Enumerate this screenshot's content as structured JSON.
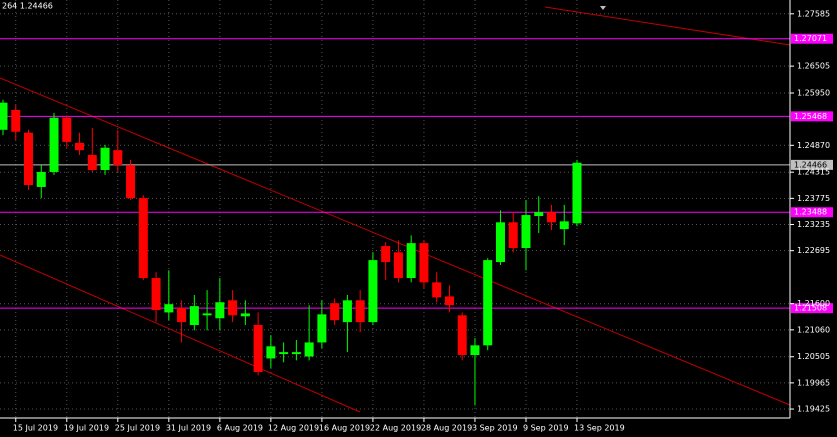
{
  "chart_data": {
    "type": "candlestick",
    "info": "264 1.24466",
    "categories": [
      null,
      "15 Jul 2019",
      null,
      null,
      null,
      "19 Jul 2019",
      null,
      null,
      null,
      "25 Jul 2019",
      null,
      null,
      null,
      "31 Jul 2019",
      null,
      null,
      null,
      "6 Aug 2019",
      null,
      null,
      null,
      "12 Aug 2019",
      null,
      null,
      null,
      "16 Aug 2019",
      null,
      null,
      null,
      "22 Aug 2019",
      null,
      null,
      null,
      "28 Aug 2019",
      null,
      null,
      null,
      "3 Sep 2019",
      null,
      null,
      null,
      "9 Sep 2019",
      null,
      null,
      null,
      "13 Sep 2019"
    ],
    "open": [
      1.2519,
      1.256,
      1.2513,
      1.2401,
      1.2432,
      1.2544,
      1.2492,
      1.2467,
      1.2436,
      1.2477,
      1.2446,
      1.2378,
      1.2213,
      1.2142,
      1.2151,
      1.2116,
      1.2136,
      1.213,
      1.2167,
      1.2134,
      1.2116,
      1.2047,
      1.2056,
      1.2056,
      1.2051,
      1.208,
      1.2161,
      1.2122,
      1.2167,
      1.2122,
      1.2279,
      1.2266,
      1.2213,
      1.2285,
      1.2204,
      1.2175,
      1.2136,
      1.2054,
      1.2074,
      1.2246,
      1.2328,
      1.2275,
      1.2341,
      1.2349,
      1.2314,
      1.2326
    ],
    "high": [
      1.2581,
      1.257,
      1.2519,
      1.2446,
      1.2554,
      1.2549,
      1.2513,
      1.2523,
      1.2488,
      1.2519,
      1.2457,
      1.2384,
      1.2225,
      1.2229,
      1.2167,
      1.2178,
      1.2188,
      1.2213,
      1.2188,
      1.2167,
      1.2142,
      1.2095,
      1.208,
      1.2085,
      1.2157,
      1.2167,
      1.2171,
      1.2178,
      1.2188,
      1.2266,
      1.2287,
      1.2291,
      1.2301,
      1.2291,
      1.2225,
      1.2198,
      1.2142,
      1.2089,
      1.2254,
      1.2353,
      1.2349,
      1.2374,
      1.2382,
      1.2364,
      1.2364,
      1.2457
    ],
    "low": [
      1.2508,
      1.2498,
      1.2395,
      1.2378,
      1.2426,
      1.2482,
      1.2467,
      1.2432,
      1.2426,
      1.2432,
      1.2374,
      1.2209,
      1.2122,
      1.2126,
      1.208,
      1.2105,
      1.2105,
      1.2105,
      1.2122,
      1.2116,
      1.2012,
      1.2027,
      1.2039,
      1.2043,
      1.2043,
      1.2068,
      1.2116,
      1.206,
      1.2101,
      1.2116,
      1.2209,
      1.2204,
      1.2204,
      1.2192,
      1.2163,
      1.2142,
      1.2043,
      1.195,
      1.2064,
      1.224,
      1.2266,
      1.2229,
      1.2306,
      1.2312,
      1.2281,
      1.232
    ],
    "close": [
      1.2575,
      1.2515,
      1.2405,
      1.2432,
      1.2544,
      1.2494,
      1.2477,
      1.2436,
      1.2482,
      1.2446,
      1.2378,
      1.2213,
      1.2147,
      1.2159,
      1.2122,
      1.2155,
      1.214,
      1.2163,
      1.2136,
      1.214,
      1.2019,
      1.2072,
      1.206,
      1.206,
      1.208,
      1.2138,
      1.2126,
      1.2167,
      1.2122,
      1.225,
      1.2246,
      1.2213,
      1.2285,
      1.2204,
      1.2173,
      1.2157,
      1.2054,
      1.2074,
      1.225,
      1.2328,
      1.2275,
      1.2343,
      1.2349,
      1.2328,
      1.233,
      1.2451
    ],
    "up_color": "#00ff00",
    "down_color": "#ff0000",
    "ylim": [
      1.1924,
      1.2787
    ],
    "yticks": [
      1.27585,
      1.26505,
      {
        "value": 1.2595,
        "label": "1.25950"
      },
      {
        "value": 1.2487,
        "label": "1.24870"
      },
      1.24315,
      1.23775,
      1.23235,
      1.22695,
      {
        "value": 1.216,
        "label": "1.21600"
      },
      {
        "value": 1.2106,
        "label": "1.21060"
      },
      1.20505,
      1.19965,
      1.19425
    ],
    "levels": [
      {
        "value": 1.27071,
        "color": "#ff00ff"
      },
      {
        "value": 1.25468,
        "color": "#ff00ff"
      },
      {
        "value": 1.24466,
        "color": "#c0c0c0"
      },
      {
        "value": 1.23488,
        "color": "#ff00ff"
      },
      {
        "value": 1.21508,
        "color": "#ff00ff"
      }
    ],
    "grid": true
  }
}
